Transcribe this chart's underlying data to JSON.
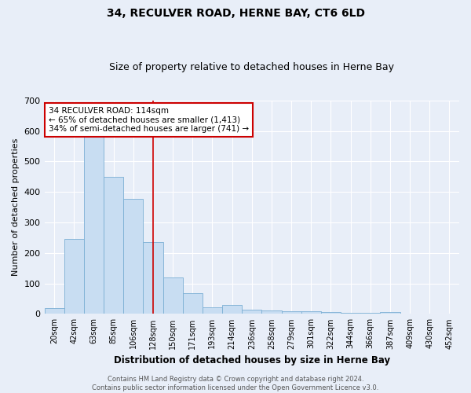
{
  "title": "34, RECULVER ROAD, HERNE BAY, CT6 6LD",
  "subtitle": "Size of property relative to detached houses in Herne Bay",
  "xlabel": "Distribution of detached houses by size in Herne Bay",
  "ylabel": "Number of detached properties",
  "categories": [
    "20sqm",
    "42sqm",
    "63sqm",
    "85sqm",
    "106sqm",
    "128sqm",
    "150sqm",
    "171sqm",
    "193sqm",
    "214sqm",
    "236sqm",
    "258sqm",
    "279sqm",
    "301sqm",
    "322sqm",
    "344sqm",
    "366sqm",
    "387sqm",
    "409sqm",
    "430sqm",
    "452sqm"
  ],
  "values": [
    18,
    247,
    590,
    450,
    378,
    236,
    120,
    68,
    22,
    30,
    14,
    12,
    10,
    8,
    7,
    4,
    4,
    7,
    0,
    0,
    0
  ],
  "bar_color": "#c8ddf2",
  "bar_edge_color": "#7bafd4",
  "red_line_x": 5.0,
  "annotation_text": "34 RECULVER ROAD: 114sqm\n← 65% of detached houses are smaller (1,413)\n34% of semi-detached houses are larger (741) →",
  "annotation_box_color": "#ffffff",
  "annotation_box_edge_color": "#cc0000",
  "footer_text": "Contains HM Land Registry data © Crown copyright and database right 2024.\nContains public sector information licensed under the Open Government Licence v3.0.",
  "bg_color": "#e8eef8",
  "plot_bg_color": "#e8eef8",
  "ylim": [
    0,
    700
  ],
  "yticks": [
    0,
    100,
    200,
    300,
    400,
    500,
    600,
    700
  ],
  "title_fontsize": 10,
  "subtitle_fontsize": 9,
  "red_line_color": "#cc0000",
  "grid_color": "#ffffff",
  "footer_color": "#555555"
}
